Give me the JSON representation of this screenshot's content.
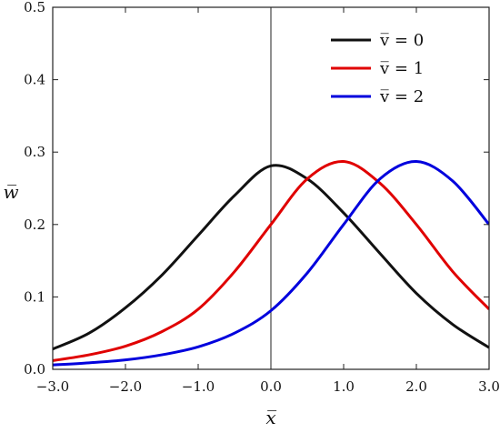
{
  "chart_data": {
    "type": "line",
    "title": "",
    "xlabel": "x̅",
    "ylabel": "w̅",
    "xlim": [
      -3.0,
      3.0
    ],
    "ylim": [
      0,
      0.5
    ],
    "xticks": [
      -3.0,
      -2.0,
      -1.0,
      0.0,
      1.0,
      2.0,
      3.0
    ],
    "xtick_labels": [
      "−3.0",
      "−2.0",
      "−1.0",
      "0.0",
      "1.0",
      "2.0",
      "3.0"
    ],
    "yticks": [
      0,
      0.1,
      0.2,
      0.3,
      0.4,
      0.5
    ],
    "ytick_labels": [
      "0.0",
      "0.1",
      "0.2",
      "0.3",
      "0.4",
      "0.5"
    ],
    "grid": false,
    "legend_position": "top-right",
    "series": [
      {
        "name": "v̅ = 0",
        "color": "#111111",
        "x": [
          -3.0,
          -2.5,
          -2.0,
          -1.5,
          -1.0,
          -0.5,
          0.0,
          0.5,
          1.0,
          1.5,
          2.0,
          2.5,
          3.0
        ],
        "values": [
          0.028,
          0.05,
          0.085,
          0.13,
          0.185,
          0.24,
          0.281,
          0.263,
          0.216,
          0.16,
          0.105,
          0.062,
          0.03
        ]
      },
      {
        "name": "v̅ = 1",
        "color": "#e00000",
        "x": [
          -3.0,
          -2.5,
          -2.0,
          -1.5,
          -1.0,
          -0.5,
          0.0,
          0.5,
          1.0,
          1.5,
          2.0,
          2.5,
          3.0
        ],
        "values": [
          0.012,
          0.02,
          0.032,
          0.052,
          0.083,
          0.135,
          0.2,
          0.263,
          0.287,
          0.257,
          0.2,
          0.135,
          0.083
        ]
      },
      {
        "name": "v̅ = 2",
        "color": "#0000dd",
        "x": [
          -3.0,
          -2.5,
          -2.0,
          -1.5,
          -1.0,
          -0.5,
          0.0,
          0.5,
          1.0,
          1.5,
          2.0,
          2.5,
          3.0
        ],
        "values": [
          0.006,
          0.009,
          0.013,
          0.02,
          0.031,
          0.05,
          0.081,
          0.133,
          0.2,
          0.263,
          0.287,
          0.26,
          0.2
        ]
      }
    ]
  }
}
